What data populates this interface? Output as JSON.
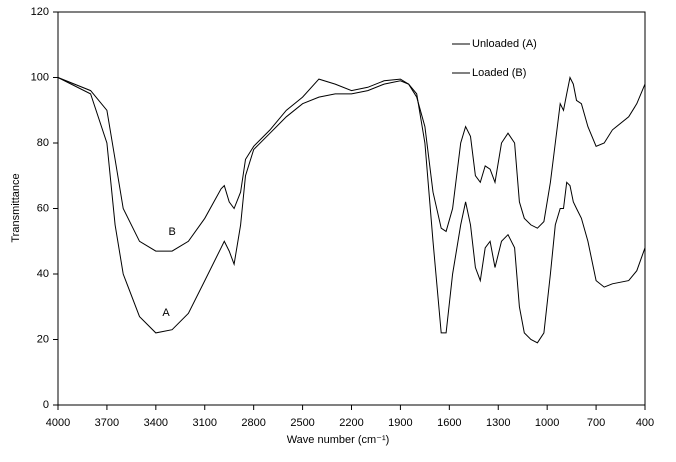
{
  "chart_data": {
    "type": "line",
    "xlabel": "Wave number (cm⁻¹)",
    "ylabel": "Transmittance",
    "x": [
      4000,
      3800,
      3700,
      3650,
      3600,
      3500,
      3400,
      3300,
      3200,
      3100,
      3000,
      2980,
      2950,
      2920,
      2880,
      2850,
      2800,
      2700,
      2600,
      2500,
      2400,
      2300,
      2200,
      2100,
      2000,
      1900,
      1850,
      1800,
      1750,
      1700,
      1650,
      1620,
      1580,
      1530,
      1500,
      1470,
      1440,
      1410,
      1380,
      1350,
      1320,
      1280,
      1240,
      1200,
      1170,
      1140,
      1100,
      1060,
      1020,
      980,
      950,
      920,
      900,
      880,
      860,
      840,
      820,
      790,
      750,
      700,
      650,
      600,
      500,
      450,
      400
    ],
    "series": [
      {
        "name": "Unloaded (A)",
        "color": "#000000",
        "values": [
          100,
          95,
          80,
          55,
          40,
          27,
          22,
          23,
          28,
          38,
          48,
          50,
          47,
          43,
          55,
          70,
          78,
          83,
          88,
          92,
          94,
          95,
          95,
          96,
          98,
          99,
          98,
          95,
          80,
          50,
          22,
          22,
          40,
          55,
          62,
          55,
          42,
          38,
          48,
          50,
          42,
          50,
          52,
          48,
          30,
          22,
          20,
          19,
          22,
          40,
          55,
          60,
          60,
          68,
          67,
          62,
          60,
          57,
          50,
          38,
          36,
          37,
          38,
          41,
          48
        ]
      },
      {
        "name": "Loaded (B)",
        "color": "#000000",
        "values": [
          100,
          96,
          90,
          75,
          60,
          50,
          47,
          47,
          50,
          57,
          66,
          67,
          62,
          60,
          65,
          75,
          79,
          84,
          90,
          94,
          99.5,
          98,
          96,
          97,
          99,
          99.5,
          98,
          94,
          85,
          65,
          54,
          53,
          60,
          80,
          85,
          82,
          70,
          68,
          73,
          72,
          68,
          80,
          83,
          80,
          62,
          57,
          55,
          54,
          56,
          68,
          80,
          92,
          90,
          95,
          100,
          98,
          93,
          92,
          85,
          79,
          80,
          84,
          88,
          92,
          98
        ]
      }
    ],
    "annotations": [
      {
        "text": "B",
        "x": 3300,
        "y": 52.8
      },
      {
        "text": "A",
        "x": 3337,
        "y": 28
      }
    ],
    "xlim": [
      4000,
      400
    ],
    "xticks": [
      4000,
      3700,
      3400,
      3100,
      2800,
      2500,
      2200,
      1900,
      1600,
      1300,
      1000,
      700,
      400
    ],
    "ylim": [
      0,
      120
    ],
    "yticks": [
      0,
      20,
      40,
      60,
      80,
      100,
      120
    ],
    "grid": false,
    "legend": "upper right"
  }
}
